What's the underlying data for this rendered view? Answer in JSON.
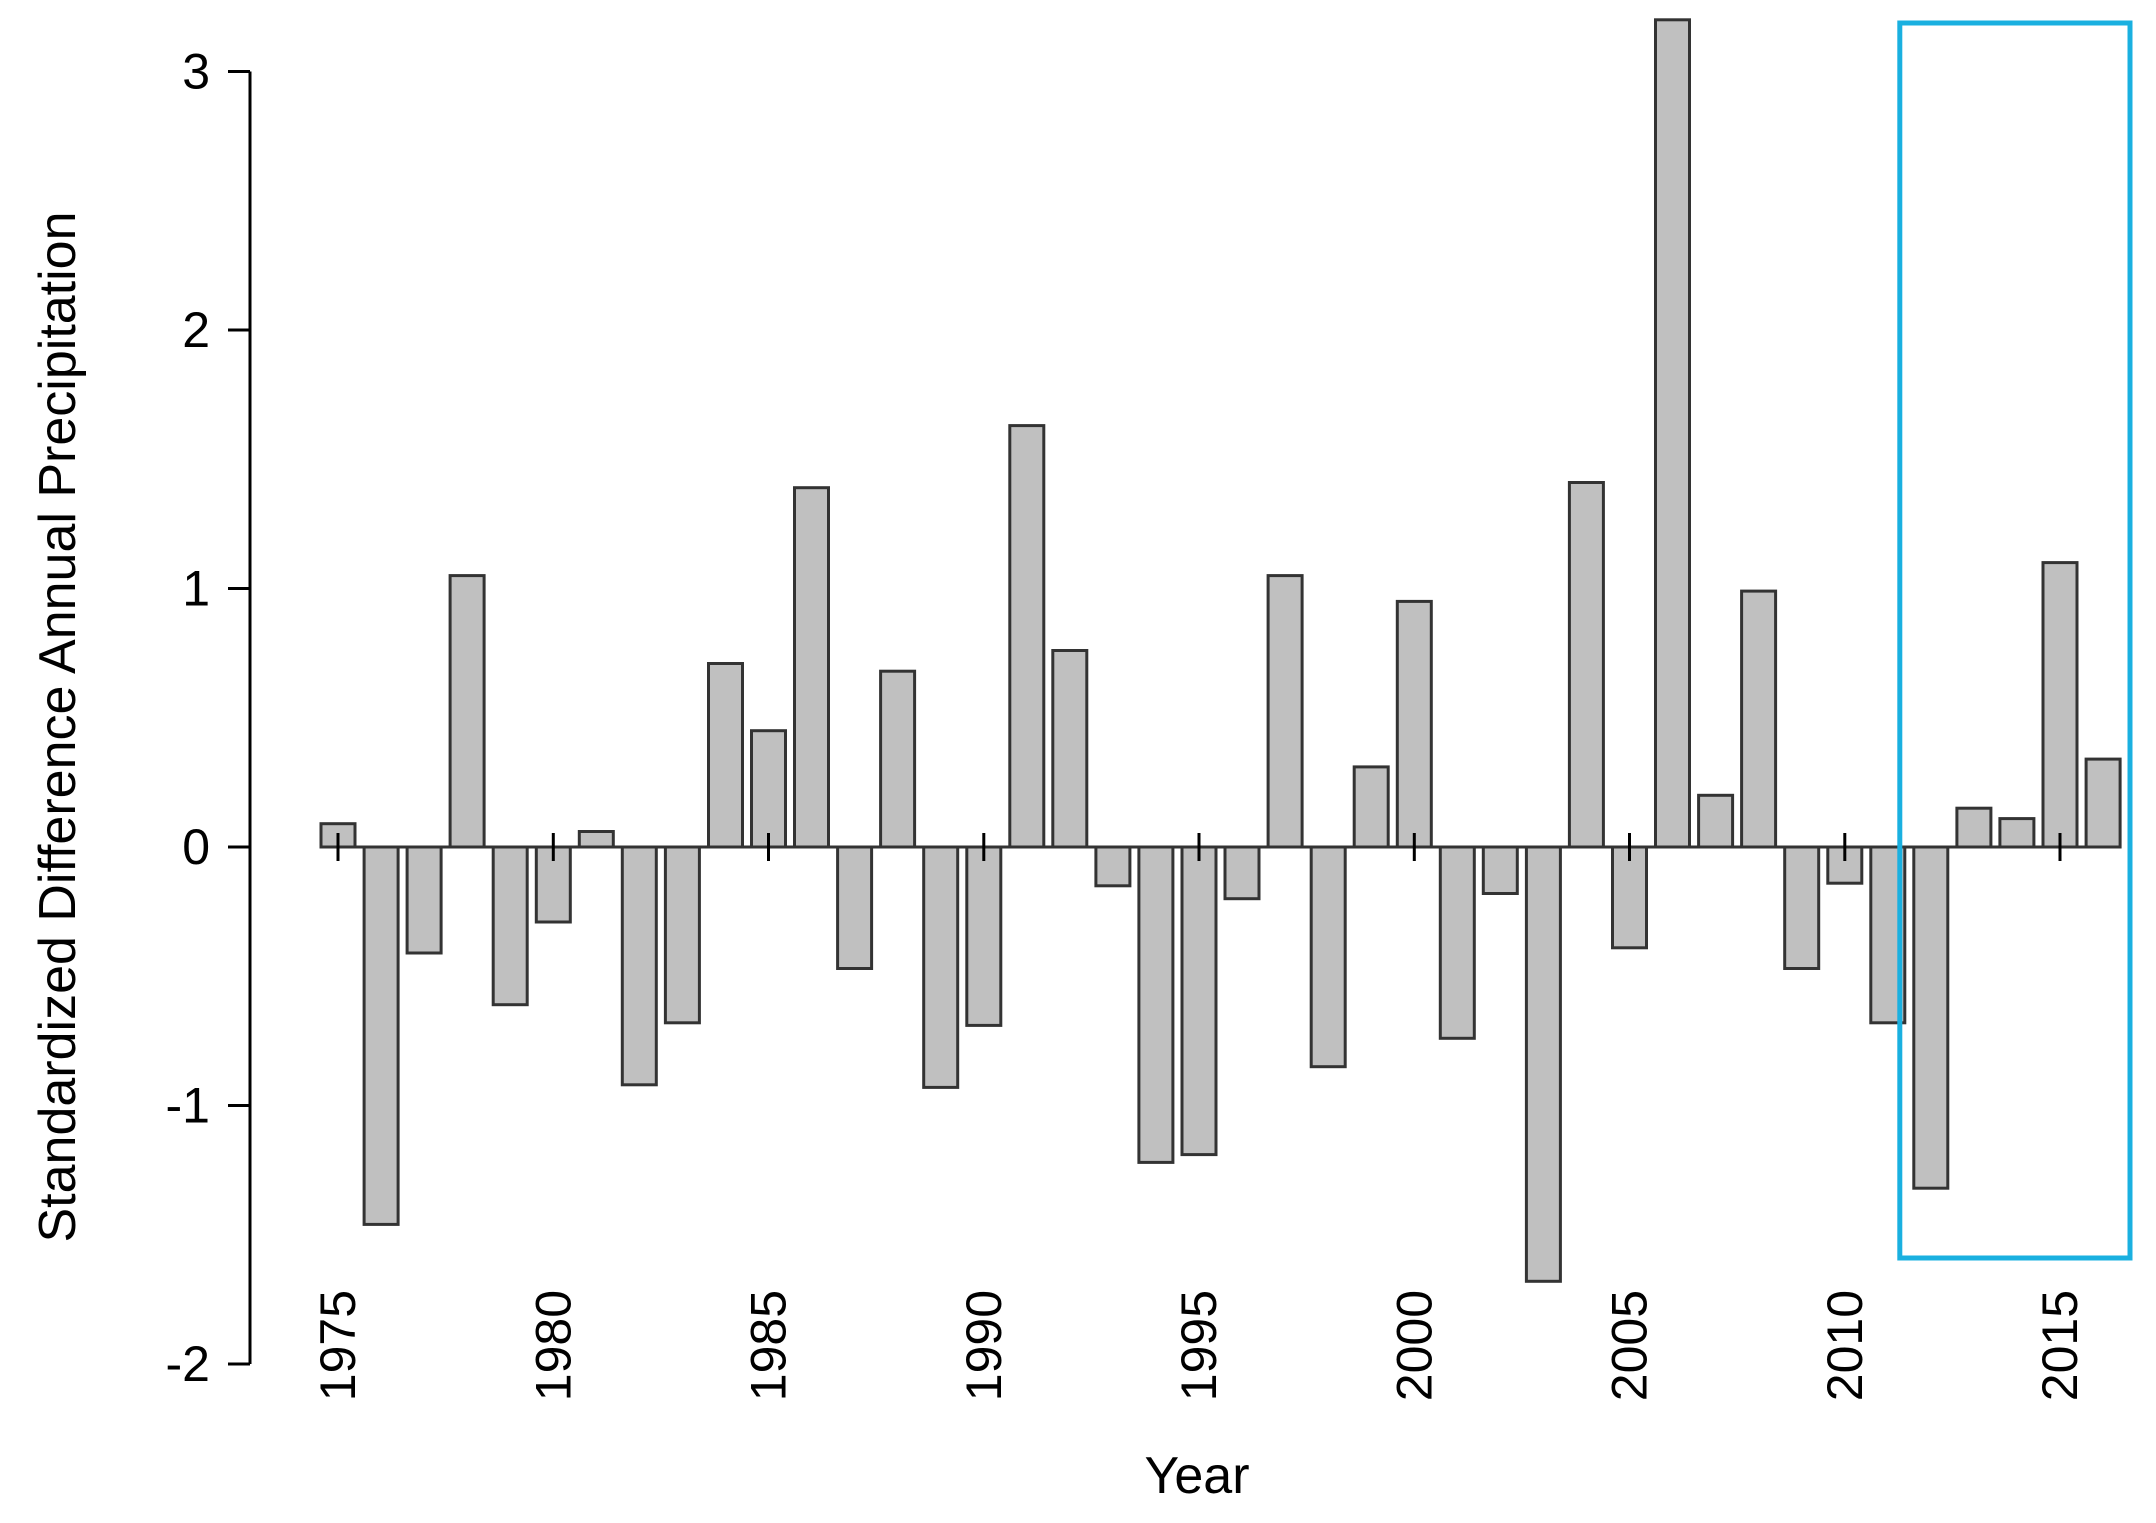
{
  "chart_data": {
    "type": "bar",
    "title": "",
    "xlabel": "Year",
    "ylabel": "Standardized Difference Annual Precipitation",
    "ylim": [
      -2,
      3.2
    ],
    "yticks": [
      -2,
      -1,
      0,
      1,
      2,
      3
    ],
    "ytick_labels": [
      "-2",
      "-1",
      "0",
      "1",
      "2",
      "3"
    ],
    "xticks": [
      1975,
      1980,
      1985,
      1990,
      1995,
      2000,
      2005,
      2010,
      2015
    ],
    "xtick_labels": [
      "1975",
      "1980",
      "1985",
      "1990",
      "1995",
      "2000",
      "2005",
      "2010",
      "2015"
    ],
    "grid": false,
    "bar_color": "#c0c0c0",
    "bar_edge_color": "#333333",
    "highlight": {
      "x_start": 2012,
      "x_end": 2016,
      "color": "#1ab0e0"
    },
    "series": [
      {
        "x": [
          1975,
          1976,
          1977,
          1978,
          1979,
          1980,
          1981,
          1982,
          1983,
          1984,
          1985,
          1986,
          1987,
          1988,
          1989,
          1990,
          1991,
          1992,
          1993,
          1994,
          1995,
          1996,
          1997,
          1998,
          1999,
          2000,
          2001,
          2002,
          2003,
          2004,
          2005,
          2006,
          2007,
          2008,
          2009,
          2010,
          2011,
          2012,
          2013,
          2014,
          2015,
          2016
        ],
        "values": [
          0.09,
          -1.46,
          -0.41,
          1.05,
          -0.61,
          -0.29,
          0.06,
          -0.92,
          -0.68,
          0.71,
          0.45,
          1.39,
          -0.47,
          0.68,
          -0.93,
          -0.69,
          1.63,
          0.76,
          -0.15,
          -1.22,
          -1.19,
          -0.2,
          1.05,
          -0.85,
          0.31,
          0.95,
          -0.74,
          -0.18,
          -1.68,
          1.41,
          -0.39,
          3.2,
          0.2,
          0.99,
          -0.47,
          -0.14,
          -0.68,
          -1.32,
          0.15,
          0.11,
          1.1,
          0.34
        ]
      }
    ]
  }
}
